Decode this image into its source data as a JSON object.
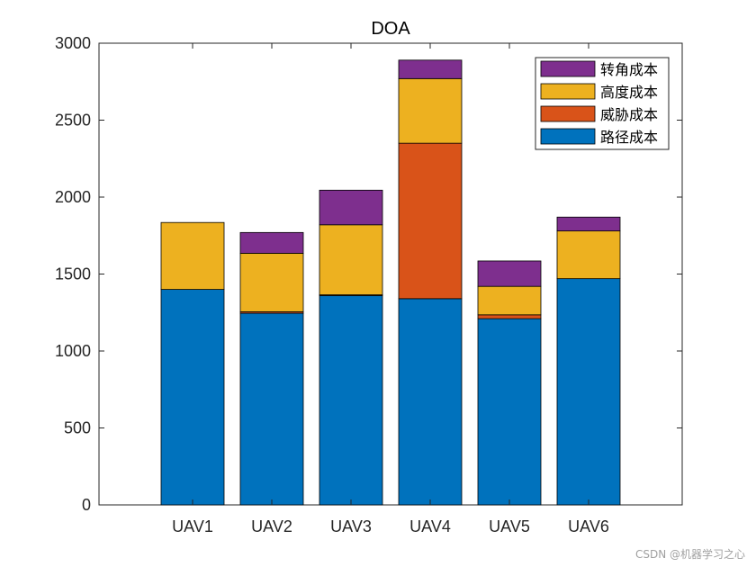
{
  "chart_data": {
    "type": "bar",
    "stacked": true,
    "title": "DOA",
    "xlabel": "",
    "ylabel": "",
    "categories": [
      "UAV1",
      "UAV2",
      "UAV3",
      "UAV4",
      "UAV5",
      "UAV6"
    ],
    "ylim": [
      0,
      3000
    ],
    "yticks": [
      0,
      500,
      1000,
      1500,
      2000,
      2500,
      3000
    ],
    "grid": false,
    "legend_position": "top-right",
    "series": [
      {
        "name": "路径成本",
        "color": "#0072BD",
        "values": [
          1400,
          1245,
          1360,
          1340,
          1210,
          1470
        ]
      },
      {
        "name": "威胁成本",
        "color": "#D95319",
        "values": [
          0,
          10,
          5,
          1010,
          25,
          0
        ]
      },
      {
        "name": "高度成本",
        "color": "#EDB120",
        "values": [
          435,
          380,
          455,
          420,
          185,
          310
        ]
      },
      {
        "name": "转角成本",
        "color": "#7E2F8E",
        "values": [
          0,
          135,
          225,
          120,
          165,
          90
        ]
      }
    ],
    "legend_order": [
      "转角成本",
      "高度成本",
      "威胁成本",
      "路径成本"
    ]
  },
  "watermark": "CSDN @机器学习之心"
}
